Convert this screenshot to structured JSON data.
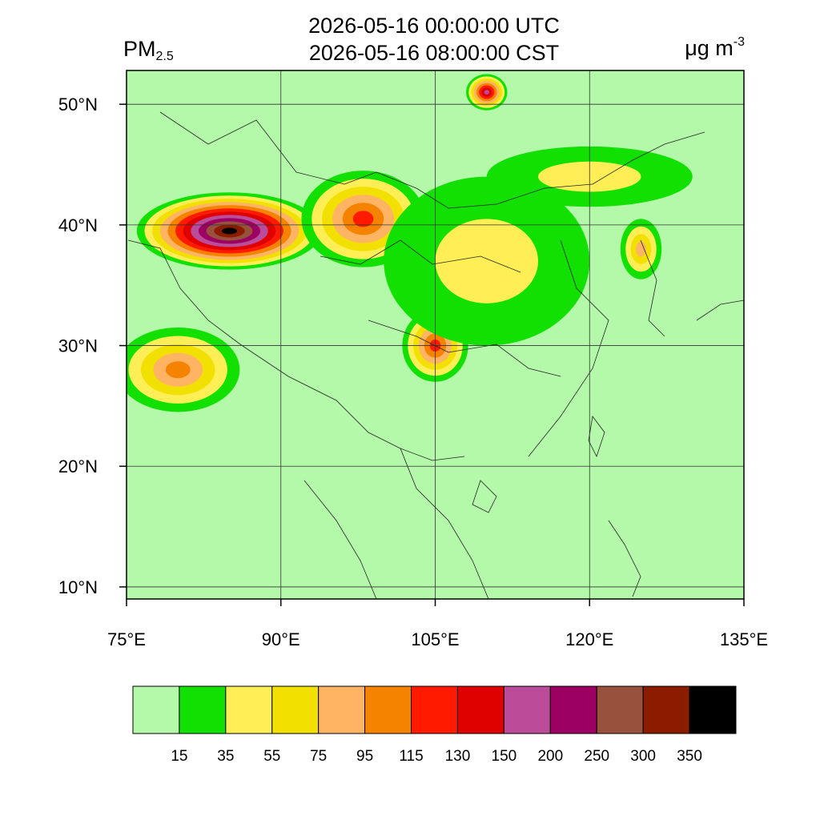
{
  "title": {
    "utc": "2026-05-16 00:00:00 UTC",
    "local": "2026-05-16 08:00:00 CST"
  },
  "variable": {
    "name": "PM",
    "subscript": "2.5"
  },
  "units": {
    "base": "μg m",
    "exponent": "-3"
  },
  "map": {
    "lon_range": [
      75,
      135
    ],
    "lat_range": [
      9.0,
      52.8
    ],
    "lon_ticks": [
      {
        "value": 75,
        "label": "75°E"
      },
      {
        "value": 90,
        "label": "90°E"
      },
      {
        "value": 105,
        "label": "105°E"
      },
      {
        "value": 120,
        "label": "120°E"
      },
      {
        "value": 135,
        "label": "135°E"
      }
    ],
    "lat_ticks": [
      {
        "value": 10,
        "label": "10°N"
      },
      {
        "value": 20,
        "label": "20°N"
      },
      {
        "value": 30,
        "label": "30°N"
      },
      {
        "value": 40,
        "label": "40°N"
      },
      {
        "value": 50,
        "label": "50°N"
      }
    ],
    "gridlines": true
  },
  "colorbar": {
    "colors": [
      "#b4f9aa",
      "#11e000",
      "#ffee55",
      "#f1e000",
      "#ffb464",
      "#f68300",
      "#ff1a00",
      "#df0000",
      "#bb4c99",
      "#9d0063",
      "#98513c",
      "#8c1c00",
      "#000000"
    ],
    "labels": [
      "15",
      "35",
      "55",
      "75",
      "95",
      "115",
      "130",
      "150",
      "200",
      "250",
      "300",
      "350"
    ]
  },
  "field": {
    "background_color": "#b4f9aa",
    "plumes": [
      {
        "lon": 85,
        "lat": 39.5,
        "peak_level": 12,
        "rx": 9,
        "ry": 3.2
      },
      {
        "lon": 98,
        "lat": 40.5,
        "peak_level": 6,
        "rx": 6,
        "ry": 4
      },
      {
        "lon": 105,
        "lat": 30,
        "peak_level": 6,
        "rx": 3.2,
        "ry": 3
      },
      {
        "lon": 80,
        "lat": 28,
        "peak_level": 5,
        "rx": 6,
        "ry": 3.5
      },
      {
        "lon": 110,
        "lat": 37,
        "peak_level": 2,
        "rx": 10,
        "ry": 7
      },
      {
        "lon": 120,
        "lat": 44,
        "peak_level": 2,
        "rx": 10,
        "ry": 2.5
      },
      {
        "lon": 110,
        "lat": 51,
        "peak_level": 8,
        "rx": 2,
        "ry": 1.5
      },
      {
        "lon": 125,
        "lat": 38,
        "peak_level": 4,
        "rx": 2,
        "ry": 2.5
      }
    ]
  }
}
